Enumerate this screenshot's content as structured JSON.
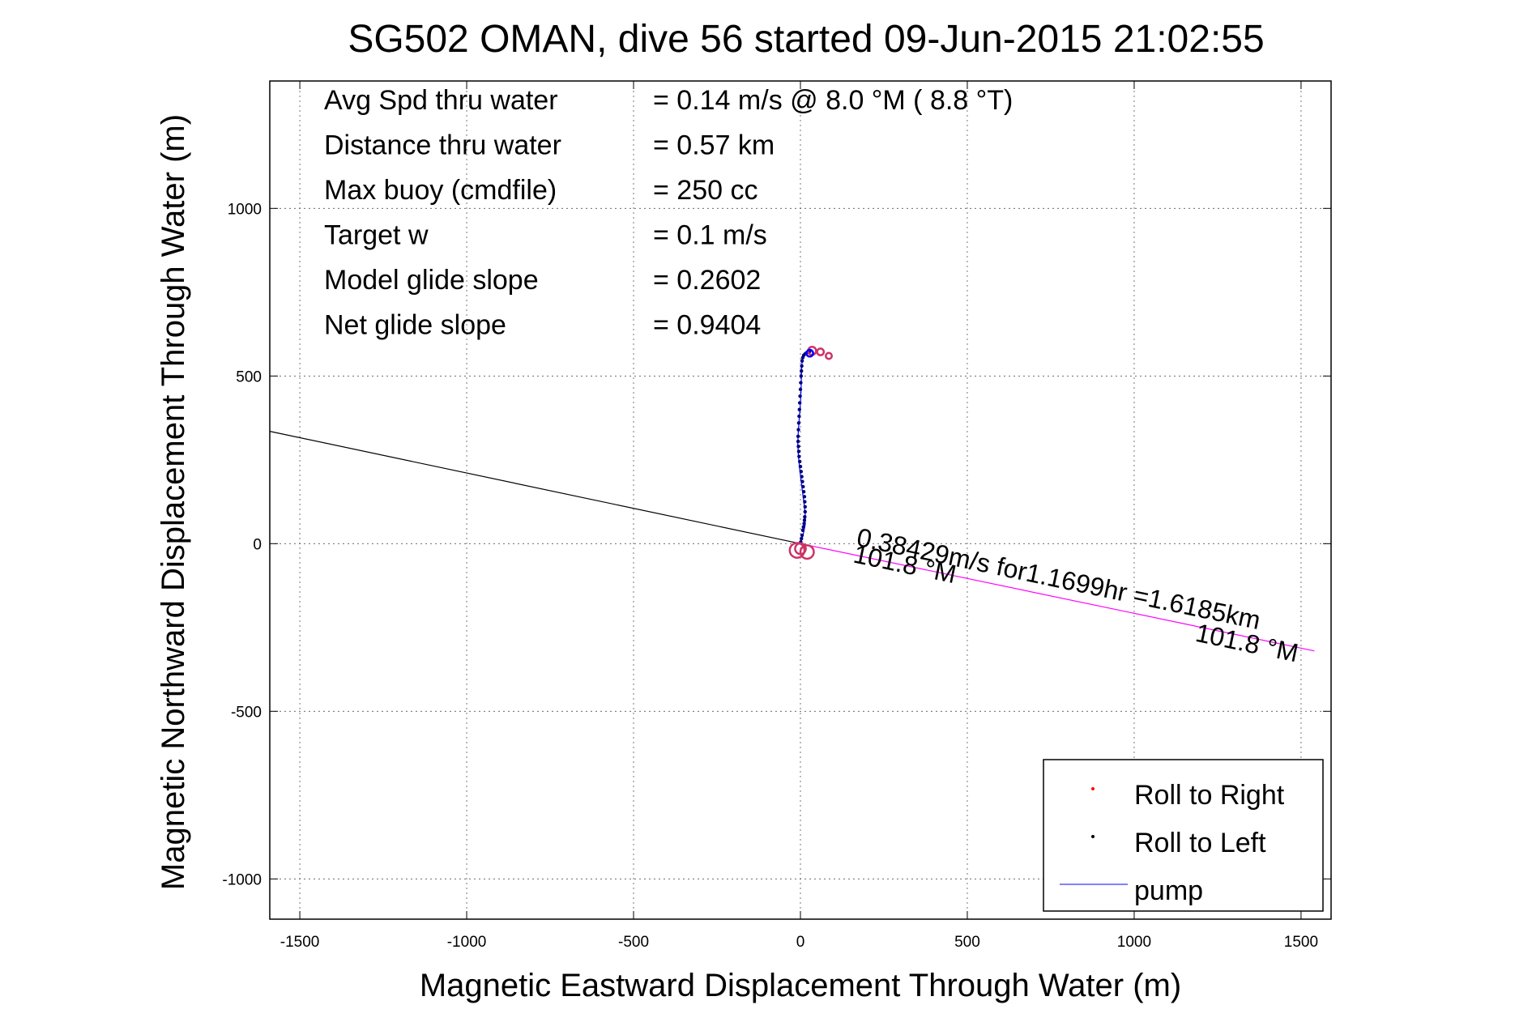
{
  "chart_data": {
    "type": "line",
    "title": "SG502 OMAN, dive 56 started 09-Jun-2015 21:02:55",
    "xlabel": "Magnetic Eastward Displacement Through Water (m)",
    "ylabel": "Magnetic Northward Displacement Through Water (m)",
    "xlim": [
      -1590,
      1590
    ],
    "ylim": [
      -1120,
      1380
    ],
    "xticks": [
      -1500,
      -1000,
      -500,
      0,
      500,
      1000,
      1500
    ],
    "yticks": [
      -1000,
      -500,
      0,
      500,
      1000
    ],
    "xtick_labels": [
      "-1500",
      "-1000",
      "-500",
      "0",
      "500",
      "1000",
      "1500"
    ],
    "ytick_labels": [
      "-1000",
      "-500",
      "0",
      "500",
      "1000"
    ],
    "grid": true,
    "legend_position": "bottom-right",
    "stats": [
      {
        "label": "Avg Spd thru water",
        "value": "=  0.14 m/s @   8.0 °M (  8.8 °T)"
      },
      {
        "label": "Distance thru water",
        "value": "=  0.57 km"
      },
      {
        "label": "Max buoy (cmdfile)",
        "value": "= 250 cc"
      },
      {
        "label": "Target w",
        "value": "= 0.1 m/s"
      },
      {
        "label": "Model glide slope",
        "value": "= 0.2602"
      },
      {
        "label": "Net glide slope",
        "value": "= 0.9404"
      }
    ],
    "legend": [
      {
        "name": "Roll to Right",
        "color": "#ff0000",
        "style": "dot"
      },
      {
        "name": "Roll to Left",
        "color": "#000000",
        "style": "dot"
      },
      {
        "name": "pump",
        "color": "#0000ff",
        "style": "line"
      }
    ],
    "annotations": [
      {
        "text": "0.38429m/s for1.1699hr =1.6185km",
        "x": 165,
        "y": -5,
        "rotation_deg": 11.8
      },
      {
        "text": "101.8 °M",
        "x": 155,
        "y": -55,
        "rotation_deg": 11.8
      },
      {
        "text": "101.8 °M",
        "x": 1180,
        "y": -290,
        "rotation_deg": 11.8
      }
    ],
    "series": [
      {
        "name": "pump",
        "style": "line",
        "color": "#0000ff",
        "x": [
          0,
          5,
          10,
          14,
          15,
          12,
          8,
          3,
          -2,
          -6,
          -8,
          -6,
          -3,
          0,
          2,
          3,
          4,
          6,
          9,
          12,
          15,
          20
        ],
        "y": [
          0,
          15,
          35,
          55,
          80,
          110,
          140,
          180,
          220,
          260,
          300,
          340,
          380,
          420,
          460,
          500,
          530,
          550,
          560,
          565,
          570,
          572
        ]
      },
      {
        "name": "track dots",
        "style": "marker",
        "color": "#000080",
        "x": [
          1,
          3,
          5,
          7,
          9,
          11,
          12,
          13,
          14,
          14,
          13,
          12,
          10,
          8,
          6,
          4,
          2,
          0,
          -2,
          -4,
          -5,
          -6,
          -7,
          -7,
          -6,
          -5,
          -4,
          -3,
          -2,
          -1,
          0,
          1,
          2,
          3,
          4,
          5,
          7,
          10,
          14,
          18,
          22,
          27
        ],
        "y": [
          5,
          15,
          25,
          40,
          50,
          60,
          70,
          80,
          95,
          110,
          125,
          140,
          155,
          170,
          185,
          200,
          215,
          230,
          245,
          260,
          275,
          290,
          305,
          320,
          340,
          360,
          380,
          400,
          420,
          440,
          460,
          480,
          500,
          515,
          530,
          545,
          555,
          562,
          566,
          569,
          571,
          573
        ]
      },
      {
        "name": "depth-averaged current",
        "style": "line",
        "color": "#ff00ff",
        "x": [
          0,
          1540
        ],
        "y": [
          0,
          -320
        ]
      },
      {
        "name": "bearing line",
        "style": "line",
        "color": "#000000",
        "x": [
          0,
          -1590
        ],
        "y": [
          0,
          335
        ]
      }
    ],
    "roll_loops": [
      {
        "cx": -10,
        "cy": -20,
        "r": 22,
        "color": "#cc3366"
      },
      {
        "cx": 20,
        "cy": -25,
        "r": 20,
        "color": "#cc3366"
      },
      {
        "cx": 0,
        "cy": -15,
        "r": 16,
        "color": "#cc3366"
      },
      {
        "cx": 35,
        "cy": 575,
        "r": 12,
        "color": "#cc3366"
      },
      {
        "cx": 60,
        "cy": 572,
        "r": 10,
        "color": "#cc3366"
      },
      {
        "cx": 85,
        "cy": 560,
        "r": 9,
        "color": "#cc3366"
      },
      {
        "cx": 28,
        "cy": 568,
        "r": 10,
        "color": "#0000ff"
      }
    ]
  }
}
